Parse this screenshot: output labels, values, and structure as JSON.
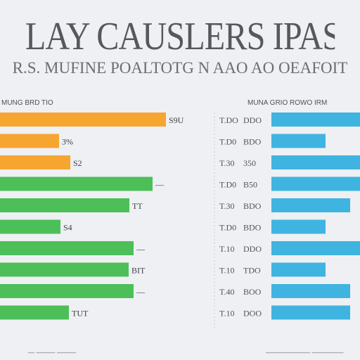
{
  "title": "LAY CAUSLERS IPASE",
  "subtitle": "R.S. MUFINE POALTOTG N AAO AO OEAFOIT",
  "left_panel": {
    "label": "MUNG BRD TIO"
  },
  "right_panel": {
    "label": "MUNA GRIO ROWO IRM"
  },
  "colors": {
    "orange": "#f7a531",
    "green": "#4cbf58",
    "blue": "#3fb4e0",
    "grid": "#c9ccd2"
  },
  "chart_data": [
    {
      "type": "bar",
      "orientation": "horizontal",
      "categories": [
        "",
        "",
        "",
        "",
        "",
        "",
        "",
        "",
        "",
        ""
      ],
      "values": [
        236,
        84,
        100,
        217,
        184,
        86,
        190,
        183,
        190,
        98
      ],
      "colors": [
        "orange",
        "orange",
        "orange",
        "green",
        "green",
        "green",
        "green",
        "green",
        "green",
        "green"
      ],
      "data_labels": [
        "S9U",
        "3%",
        "S2",
        "—",
        "TT",
        "S4",
        "—",
        "BIT",
        "—",
        "TUT"
      ],
      "xlim": [
        0,
        260
      ]
    },
    {
      "type": "bar",
      "orientation": "horizontal",
      "categories": [
        "T.DO",
        "T.D0",
        "T.30",
        "T.D0",
        "T.30",
        "T.D0",
        "T.10",
        "T.10",
        "T.40",
        "T.10"
      ],
      "secondary_labels": [
        "DDO",
        "BDO",
        "350",
        "B50",
        "BDO",
        "BDO",
        "DDO",
        "TDO",
        "BOO",
        "DOO"
      ],
      "values": [
        126,
        77,
        126,
        126,
        112,
        77,
        126,
        77,
        112,
        112
      ],
      "color": "blue",
      "data_labels": [
        "",
        "",
        "",
        "",
        "",
        "",
        "",
        "",
        "",
        ""
      ],
      "xlim": [
        0,
        126
      ]
    }
  ],
  "footer": {
    "left": "— ——— ———",
    "right": "——————— —————"
  }
}
